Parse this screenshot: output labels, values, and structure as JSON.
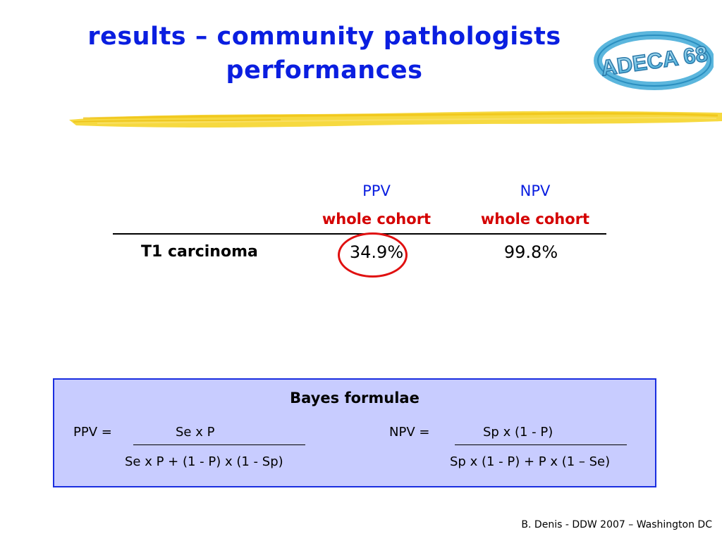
{
  "title": {
    "line1": "results – community pathologists",
    "line2": "performances"
  },
  "logo": {
    "text": "ADECA 68"
  },
  "table": {
    "columns": [
      {
        "label": "PPV",
        "sublabel": "whole cohort"
      },
      {
        "label": "NPV",
        "sublabel": "whole cohort"
      }
    ],
    "rows": [
      {
        "label": "T1 carcinoma",
        "values": [
          "34.9%",
          "99.8%"
        ]
      }
    ],
    "highlight_color": "#e01010"
  },
  "bayes": {
    "title": "Bayes formulae",
    "ppv": {
      "lhs": "PPV =",
      "numerator": "Se x P",
      "denominator": "Se x P + (1 - P) x (1 - Sp)"
    },
    "npv": {
      "lhs": "NPV =",
      "numerator": "Sp x (1 - P)",
      "denominator": "Sp x (1 - P) + P x (1 – Se)"
    }
  },
  "footer": "B. Denis - DDW 2007 – Washington DC",
  "colors": {
    "title": "#0a1ee0",
    "subheader": "#d40000",
    "box_background": "#c8ccff",
    "box_border": "#1a2ee0",
    "accent_stroke": "#f5d21e"
  }
}
